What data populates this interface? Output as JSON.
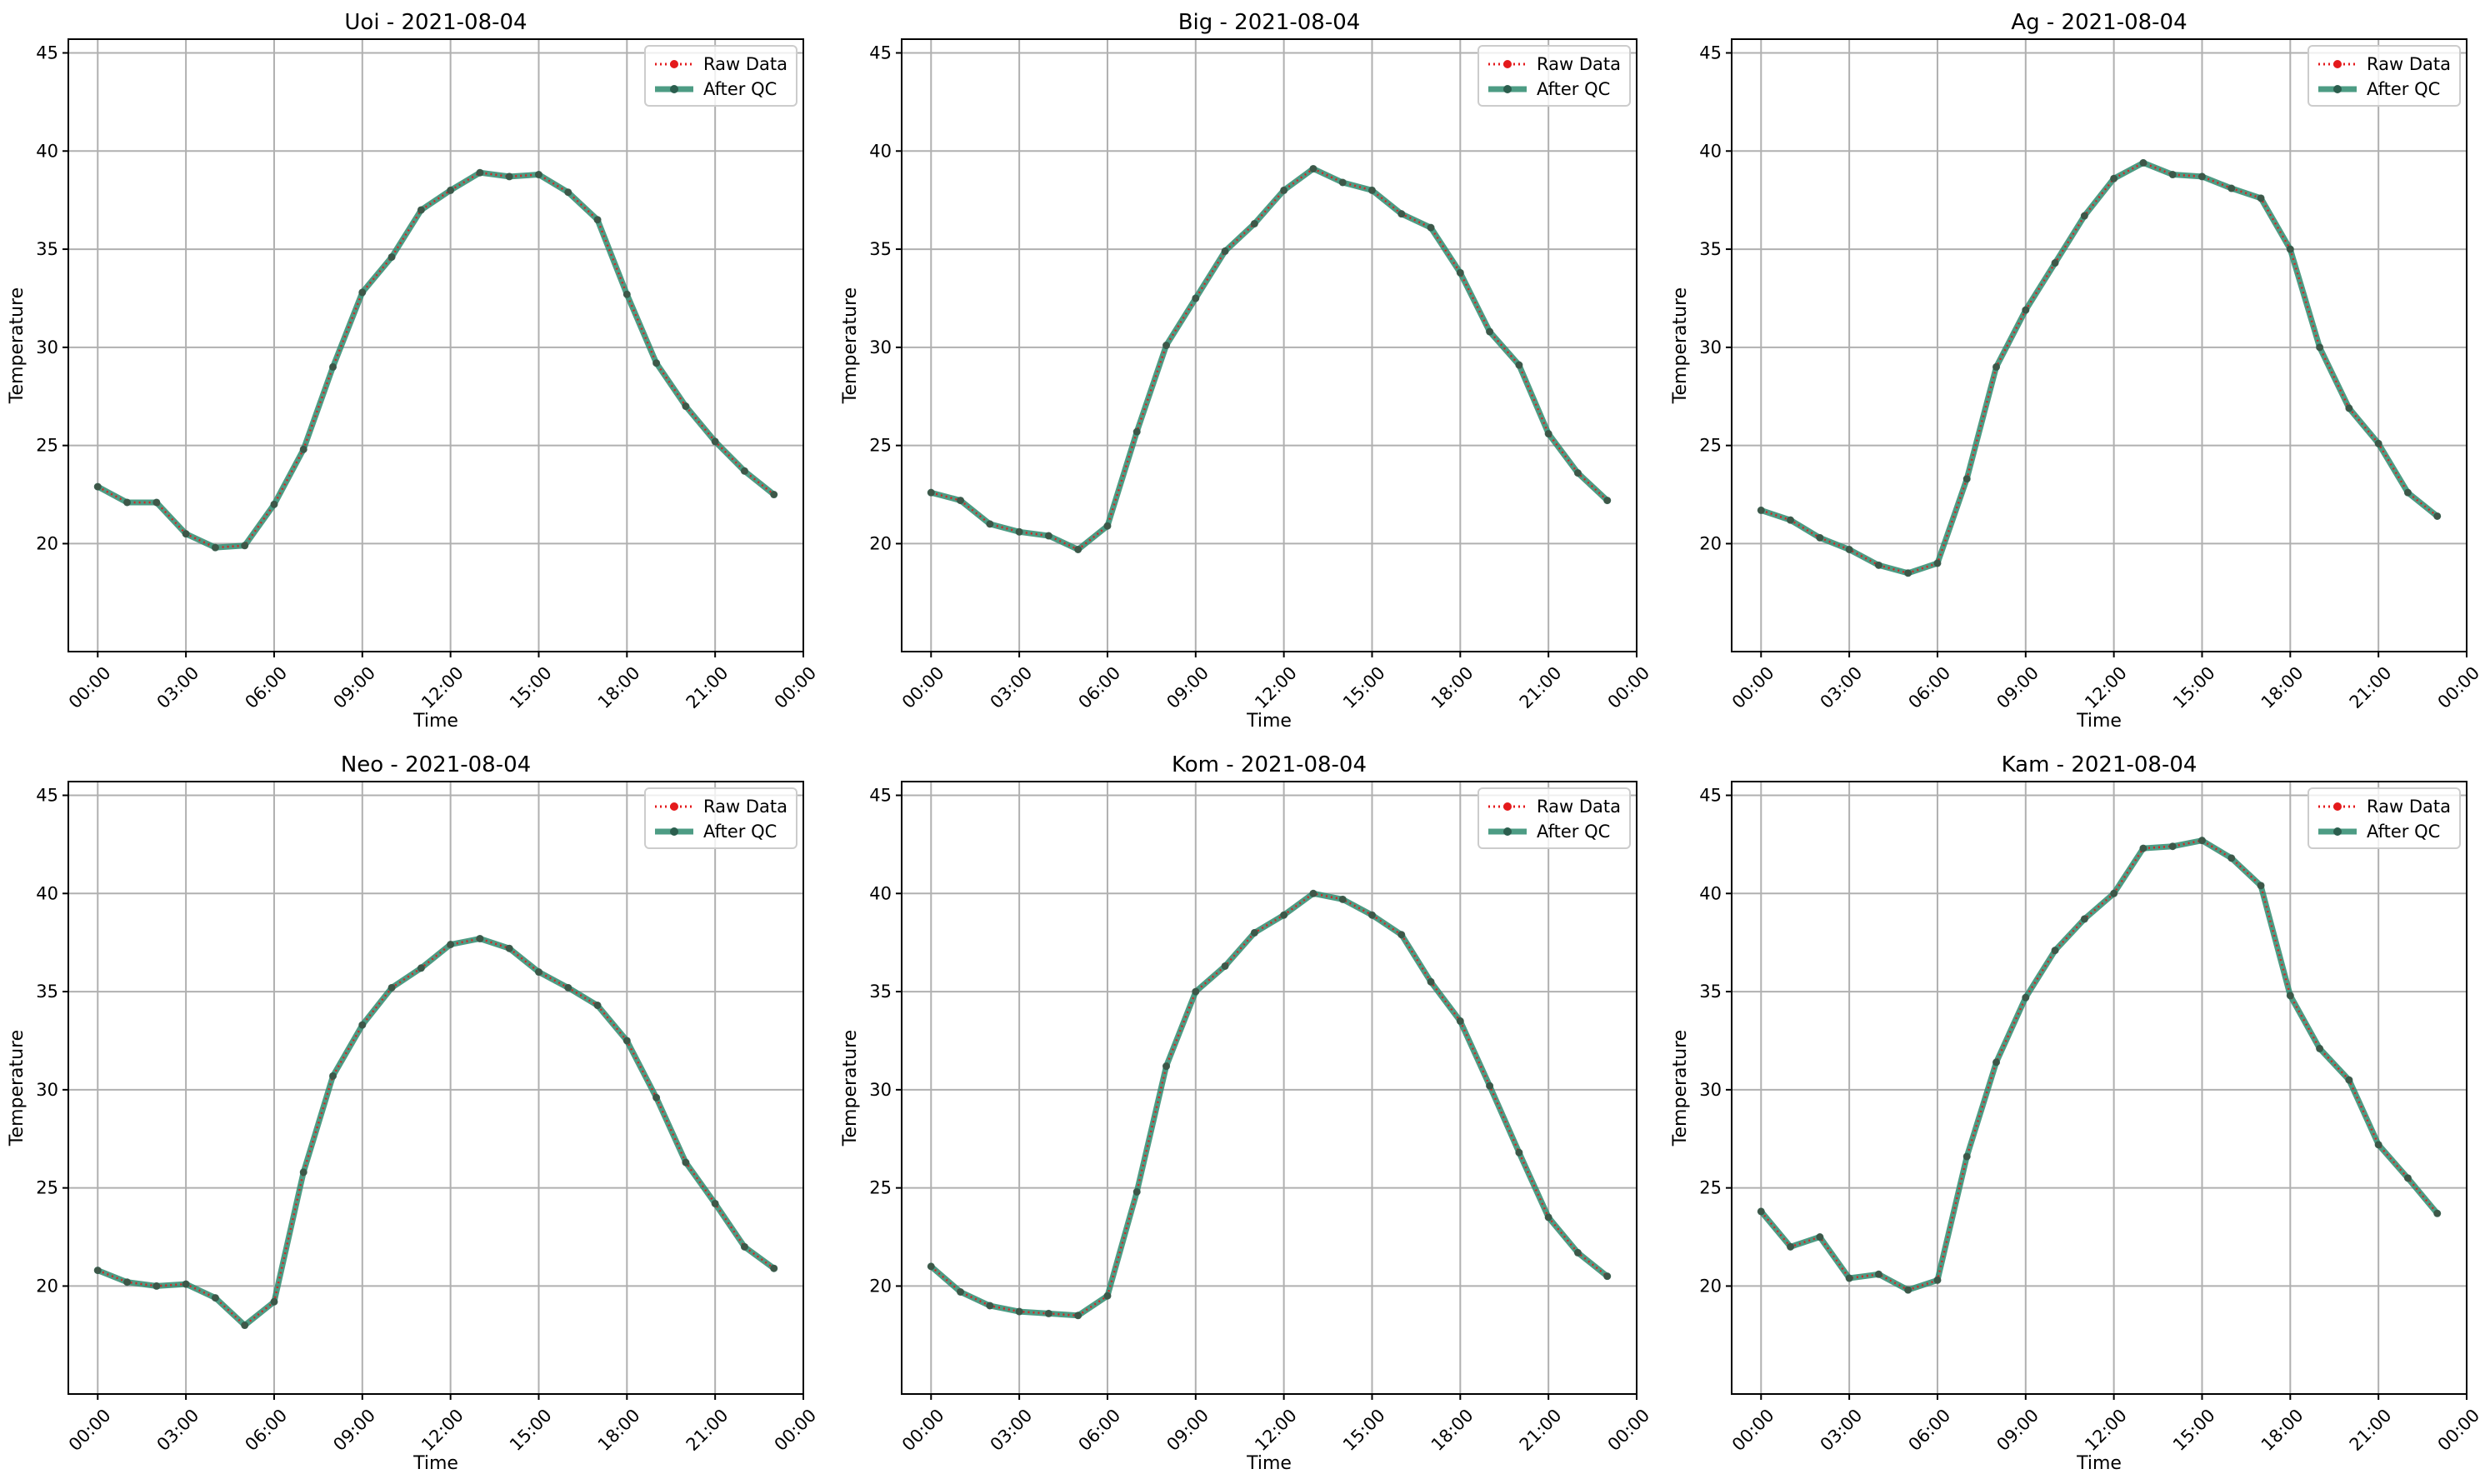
{
  "colors": {
    "raw": "#e41a1c",
    "qc": "#2e8b6e",
    "qc_dark": "#2b5e4e",
    "grid": "#b0b0b0"
  },
  "chart_data": [
    {
      "type": "line",
      "title": "Uoi - 2021-08-04",
      "xlabel": "Time",
      "ylabel": "Temperature",
      "ylim": [
        14.5,
        45.7
      ],
      "yticks": [
        20,
        25,
        30,
        35,
        40,
        45
      ],
      "xlim": [
        -1.0,
        24.0
      ],
      "xticks": [
        0,
        3,
        6,
        9,
        12,
        15,
        18,
        21,
        24
      ],
      "xticklabels": [
        "00:00",
        "03:00",
        "06:00",
        "09:00",
        "12:00",
        "15:00",
        "18:00",
        "21:00",
        "00:00"
      ],
      "grid": true,
      "legend": "upper-right",
      "x": [
        0,
        1,
        2,
        3,
        4,
        5,
        6,
        7,
        8,
        9,
        10,
        11,
        12,
        13,
        14,
        15,
        16,
        17,
        18,
        19,
        20,
        21,
        22,
        23
      ],
      "series": [
        {
          "name": "Raw Data",
          "values": [
            22.9,
            22.1,
            22.1,
            20.5,
            19.8,
            19.9,
            22.0,
            24.8,
            29.0,
            32.8,
            34.6,
            37.0,
            38.0,
            38.9,
            38.7,
            38.8,
            37.9,
            36.5,
            32.7,
            29.2,
            27.0,
            25.2,
            23.7,
            22.5
          ]
        },
        {
          "name": "After QC",
          "values": [
            22.9,
            22.1,
            22.1,
            20.5,
            19.8,
            19.9,
            22.0,
            24.8,
            29.0,
            32.8,
            34.6,
            37.0,
            38.0,
            38.9,
            38.7,
            38.8,
            37.9,
            36.5,
            32.7,
            29.2,
            27.0,
            25.2,
            23.7,
            22.5
          ]
        }
      ]
    },
    {
      "type": "line",
      "title": "Big - 2021-08-04",
      "xlabel": "Time",
      "ylabel": "Temperature",
      "ylim": [
        14.5,
        45.7
      ],
      "yticks": [
        20,
        25,
        30,
        35,
        40,
        45
      ],
      "xlim": [
        -1.0,
        24.0
      ],
      "xticks": [
        0,
        3,
        6,
        9,
        12,
        15,
        18,
        21,
        24
      ],
      "xticklabels": [
        "00:00",
        "03:00",
        "06:00",
        "09:00",
        "12:00",
        "15:00",
        "18:00",
        "21:00",
        "00:00"
      ],
      "grid": true,
      "legend": "upper-right",
      "x": [
        0,
        1,
        2,
        3,
        4,
        5,
        6,
        7,
        8,
        9,
        10,
        11,
        12,
        13,
        14,
        15,
        16,
        17,
        18,
        19,
        20,
        21,
        22,
        23
      ],
      "series": [
        {
          "name": "Raw Data",
          "values": [
            22.6,
            22.2,
            21.0,
            20.6,
            20.4,
            19.7,
            20.9,
            25.7,
            30.1,
            32.5,
            34.9,
            36.3,
            38.0,
            39.1,
            38.4,
            38.0,
            36.8,
            36.1,
            33.8,
            30.8,
            29.1,
            25.6,
            23.6,
            22.2
          ]
        },
        {
          "name": "After QC",
          "values": [
            22.6,
            22.2,
            21.0,
            20.6,
            20.4,
            19.7,
            20.9,
            25.7,
            30.1,
            32.5,
            34.9,
            36.3,
            38.0,
            39.1,
            38.4,
            38.0,
            36.8,
            36.1,
            33.8,
            30.8,
            29.1,
            25.6,
            23.6,
            22.2
          ]
        }
      ]
    },
    {
      "type": "line",
      "title": "Ag - 2021-08-04",
      "xlabel": "Time",
      "ylabel": "Temperature",
      "ylim": [
        14.5,
        45.7
      ],
      "yticks": [
        20,
        25,
        30,
        35,
        40,
        45
      ],
      "xlim": [
        -1.0,
        24.0
      ],
      "xticks": [
        0,
        3,
        6,
        9,
        12,
        15,
        18,
        21,
        24
      ],
      "xticklabels": [
        "00:00",
        "03:00",
        "06:00",
        "09:00",
        "12:00",
        "15:00",
        "18:00",
        "21:00",
        "00:00"
      ],
      "grid": true,
      "legend": "upper-right",
      "x": [
        0,
        1,
        2,
        3,
        4,
        5,
        6,
        7,
        8,
        9,
        10,
        11,
        12,
        13,
        14,
        15,
        16,
        17,
        18,
        19,
        20,
        21,
        22,
        23
      ],
      "series": [
        {
          "name": "Raw Data",
          "values": [
            21.7,
            21.2,
            20.3,
            19.7,
            18.9,
            18.5,
            19.0,
            23.3,
            29.0,
            31.9,
            34.3,
            36.7,
            38.6,
            39.4,
            38.8,
            38.7,
            38.1,
            37.6,
            35.0,
            30.0,
            26.9,
            25.1,
            22.6,
            21.4
          ]
        },
        {
          "name": "After QC",
          "values": [
            21.7,
            21.2,
            20.3,
            19.7,
            18.9,
            18.5,
            19.0,
            23.3,
            29.0,
            31.9,
            34.3,
            36.7,
            38.6,
            39.4,
            38.8,
            38.7,
            38.1,
            37.6,
            35.0,
            30.0,
            26.9,
            25.1,
            22.6,
            21.4
          ]
        }
      ]
    },
    {
      "type": "line",
      "title": "Neo - 2021-08-04",
      "xlabel": "Time",
      "ylabel": "Temperature",
      "ylim": [
        14.5,
        45.7
      ],
      "yticks": [
        20,
        25,
        30,
        35,
        40,
        45
      ],
      "xlim": [
        -1.0,
        24.0
      ],
      "xticks": [
        0,
        3,
        6,
        9,
        12,
        15,
        18,
        21,
        24
      ],
      "xticklabels": [
        "00:00",
        "03:00",
        "06:00",
        "09:00",
        "12:00",
        "15:00",
        "18:00",
        "21:00",
        "00:00"
      ],
      "grid": true,
      "legend": "upper-right",
      "x": [
        0,
        1,
        2,
        3,
        4,
        5,
        6,
        7,
        8,
        9,
        10,
        11,
        12,
        13,
        14,
        15,
        16,
        17,
        18,
        19,
        20,
        21,
        22,
        23
      ],
      "series": [
        {
          "name": "Raw Data",
          "values": [
            20.8,
            20.2,
            20.0,
            20.1,
            19.4,
            18.0,
            19.2,
            25.8,
            30.7,
            33.3,
            35.2,
            36.2,
            37.4,
            37.7,
            37.2,
            36.0,
            35.2,
            34.3,
            32.5,
            29.6,
            26.3,
            24.2,
            22.0,
            20.9
          ]
        },
        {
          "name": "After QC",
          "values": [
            20.8,
            20.2,
            20.0,
            20.1,
            19.4,
            18.0,
            19.2,
            25.8,
            30.7,
            33.3,
            35.2,
            36.2,
            37.4,
            37.7,
            37.2,
            36.0,
            35.2,
            34.3,
            32.5,
            29.6,
            26.3,
            24.2,
            22.0,
            20.9
          ]
        }
      ]
    },
    {
      "type": "line",
      "title": "Kom - 2021-08-04",
      "xlabel": "Time",
      "ylabel": "Temperature",
      "ylim": [
        14.5,
        45.7
      ],
      "yticks": [
        20,
        25,
        30,
        35,
        40,
        45
      ],
      "xlim": [
        -1.0,
        24.0
      ],
      "xticks": [
        0,
        3,
        6,
        9,
        12,
        15,
        18,
        21,
        24
      ],
      "xticklabels": [
        "00:00",
        "03:00",
        "06:00",
        "09:00",
        "12:00",
        "15:00",
        "18:00",
        "21:00",
        "00:00"
      ],
      "grid": true,
      "legend": "upper-right",
      "x": [
        0,
        1,
        2,
        3,
        4,
        5,
        6,
        7,
        8,
        9,
        10,
        11,
        12,
        13,
        14,
        15,
        16,
        17,
        18,
        19,
        20,
        21,
        22,
        23
      ],
      "series": [
        {
          "name": "Raw Data",
          "values": [
            21.0,
            19.7,
            19.0,
            18.7,
            18.6,
            18.5,
            19.5,
            24.8,
            31.2,
            35.0,
            36.3,
            38.0,
            38.9,
            40.0,
            39.7,
            38.9,
            37.9,
            35.5,
            33.5,
            30.2,
            26.8,
            23.5,
            21.7,
            20.5
          ]
        },
        {
          "name": "After QC",
          "values": [
            21.0,
            19.7,
            19.0,
            18.7,
            18.6,
            18.5,
            19.5,
            24.8,
            31.2,
            35.0,
            36.3,
            38.0,
            38.9,
            40.0,
            39.7,
            38.9,
            37.9,
            35.5,
            33.5,
            30.2,
            26.8,
            23.5,
            21.7,
            20.5
          ]
        }
      ]
    },
    {
      "type": "line",
      "title": "Kam - 2021-08-04",
      "xlabel": "Time",
      "ylabel": "Temperature",
      "ylim": [
        14.5,
        45.7
      ],
      "yticks": [
        20,
        25,
        30,
        35,
        40,
        45
      ],
      "xlim": [
        -1.0,
        24.0
      ],
      "xticks": [
        0,
        3,
        6,
        9,
        12,
        15,
        18,
        21,
        24
      ],
      "xticklabels": [
        "00:00",
        "03:00",
        "06:00",
        "09:00",
        "12:00",
        "15:00",
        "18:00",
        "21:00",
        "00:00"
      ],
      "grid": true,
      "legend": "upper-right",
      "x": [
        0,
        1,
        2,
        3,
        4,
        5,
        6,
        7,
        8,
        9,
        10,
        11,
        12,
        13,
        14,
        15,
        16,
        17,
        18,
        19,
        20,
        21,
        22,
        23
      ],
      "series": [
        {
          "name": "Raw Data",
          "values": [
            23.8,
            22.0,
            22.5,
            20.4,
            20.6,
            19.8,
            20.3,
            26.6,
            31.4,
            34.7,
            37.1,
            38.7,
            40.0,
            42.3,
            42.4,
            42.7,
            41.8,
            40.4,
            34.8,
            32.1,
            30.5,
            27.2,
            25.5,
            23.7
          ]
        },
        {
          "name": "After QC",
          "values": [
            23.8,
            22.0,
            22.5,
            20.4,
            20.6,
            19.8,
            20.3,
            26.6,
            31.4,
            34.7,
            37.1,
            38.7,
            40.0,
            42.3,
            42.4,
            42.7,
            41.8,
            40.4,
            34.8,
            32.1,
            30.5,
            27.2,
            25.5,
            23.7
          ]
        }
      ]
    }
  ]
}
